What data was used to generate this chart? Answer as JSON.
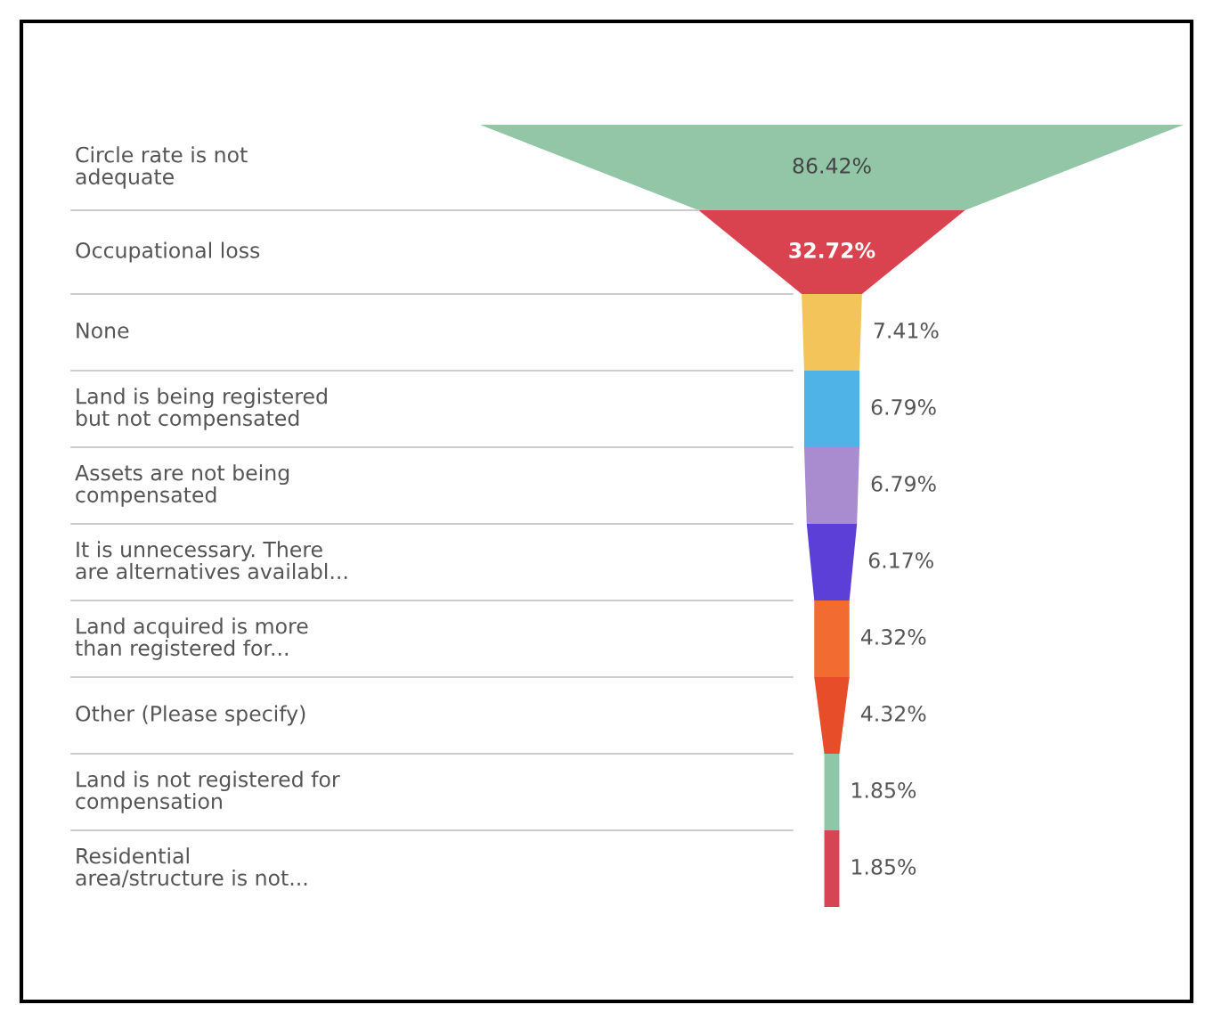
{
  "chart_data": {
    "type": "other",
    "categories": [
      "Circle rate is not\nadequate",
      "Occupational loss",
      "None",
      "Land is being registered\nbut not compensated",
      "Assets are not being\ncompensated",
      "It is unnecessary. There\nare alternatives availabl...",
      "Land acquired is more\nthan registered for...",
      "Other (Please specify)",
      "Land is not registered for\ncompensation",
      "Residential\narea/structure is not..."
    ],
    "values": [
      86.42,
      32.72,
      7.41,
      6.79,
      6.79,
      6.17,
      4.32,
      4.32,
      1.85,
      1.85
    ],
    "value_labels": [
      "86.42%",
      "32.72%",
      "7.41%",
      "6.79%",
      "6.79%",
      "6.17%",
      "4.32%",
      "4.32%",
      "1.85%",
      "1.85%"
    ],
    "colors": [
      "#92c6a6",
      "#d9434f",
      "#f2c45a",
      "#4fb3e8",
      "#a98bcf",
      "#5b3fd6",
      "#f26b30",
      "#e84d2a",
      "#8dc7a7",
      "#d64553"
    ]
  }
}
